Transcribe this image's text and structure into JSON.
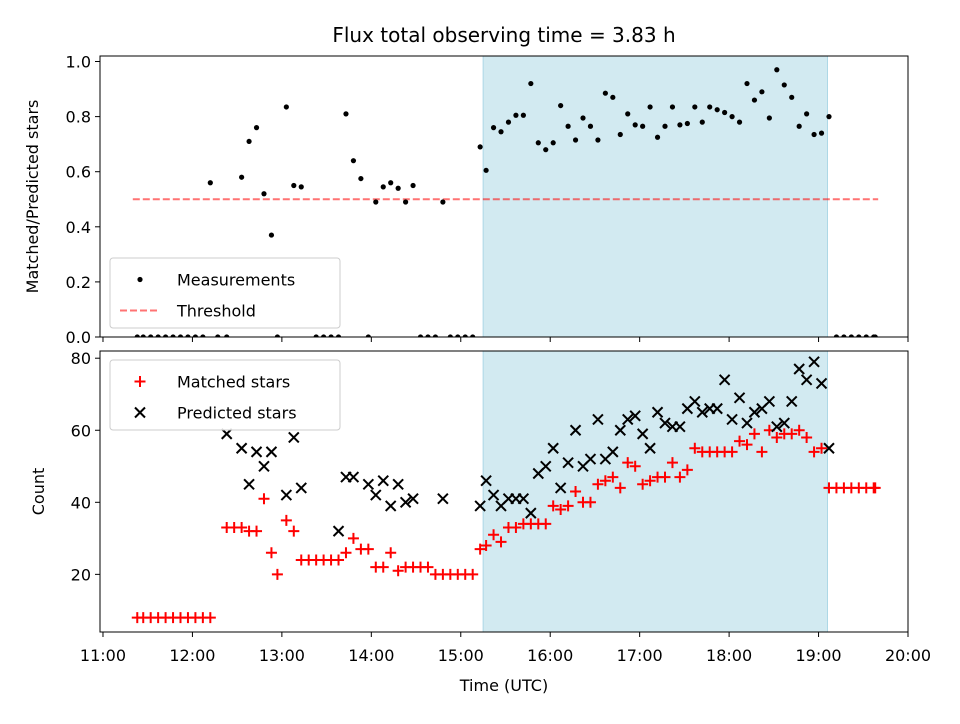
{
  "chart_data": {
    "title": "Flux total observing time = 3.83 h",
    "xlabel": "Time (UTC)",
    "x_ticks": [
      "11:00",
      "12:00",
      "13:00",
      "14:00",
      "15:00",
      "16:00",
      "17:00",
      "18:00",
      "19:00",
      "20:00"
    ],
    "xlim": [
      "10:58",
      "20:00"
    ],
    "shaded_interval": {
      "start": "15:15",
      "end": "19:06",
      "color": "#add8e6"
    },
    "panels": [
      {
        "type": "scatter",
        "ylabel": "Matched/Predicted stars",
        "ylim": [
          0,
          1.02
        ],
        "y_ticks": [
          "0.0",
          "0.2",
          "0.4",
          "0.6",
          "0.8",
          "1.0"
        ],
        "legend_position": "lower-left",
        "threshold": {
          "name": "Threshold",
          "value": 0.5,
          "x_start": "11:20",
          "x_end": "19:40",
          "color": "#ff0000",
          "style": "dashed"
        },
        "series": [
          {
            "name": "Measurements",
            "marker": "dot",
            "color": "#000000",
            "x": [
              "11:23",
              "11:27",
              "11:32",
              "11:37",
              "11:42",
              "11:47",
              "11:52",
              "11:57",
              "12:02",
              "12:07",
              "12:12",
              "12:17",
              "12:23",
              "12:33",
              "12:38",
              "12:43",
              "12:48",
              "12:53",
              "12:57",
              "13:03",
              "13:08",
              "13:13",
              "13:23",
              "13:28",
              "13:33",
              "13:38",
              "13:43",
              "13:48",
              "13:53",
              "13:58",
              "14:03",
              "14:08",
              "14:13",
              "14:18",
              "14:23",
              "14:28",
              "14:33",
              "14:38",
              "14:43",
              "14:48",
              "14:53",
              "14:58",
              "15:03",
              "15:08",
              "15:13",
              "15:17",
              "15:22",
              "15:27",
              "15:32",
              "15:37",
              "15:42",
              "15:47",
              "15:52",
              "15:57",
              "16:02",
              "16:07",
              "16:12",
              "16:17",
              "16:22",
              "16:27",
              "16:32",
              "16:37",
              "16:42",
              "16:47",
              "16:52",
              "16:57",
              "17:02",
              "17:07",
              "17:12",
              "17:17",
              "17:22",
              "17:27",
              "17:32",
              "17:37",
              "17:42",
              "17:47",
              "17:52",
              "17:57",
              "18:02",
              "18:07",
              "18:12",
              "18:17",
              "18:22",
              "18:27",
              "18:32",
              "18:37",
              "18:42",
              "18:47",
              "18:52",
              "18:57",
              "19:02",
              "19:07",
              "19:12",
              "19:17",
              "19:22",
              "19:27",
              "19:32",
              "19:37",
              "19:38"
            ],
            "y": [
              0,
              0,
              0,
              0,
              0,
              0,
              0,
              0,
              0,
              0,
              0.56,
              0,
              0,
              0.58,
              0.71,
              0.76,
              0.52,
              0.37,
              0,
              0.835,
              0.55,
              0.545,
              0,
              0,
              0,
              0,
              0.81,
              0.64,
              0.575,
              0,
              0.49,
              0.545,
              0.56,
              0.54,
              0.49,
              0.55,
              0,
              0,
              0,
              0.49,
              0,
              0,
              0,
              0,
              0.69,
              0.605,
              0.76,
              0.745,
              0.78,
              0.805,
              0.805,
              0.92,
              0.705,
              0.68,
              0.705,
              0.84,
              0.765,
              0.715,
              0.795,
              0.765,
              0.715,
              0.885,
              0.87,
              0.735,
              0.81,
              0.77,
              0.765,
              0.835,
              0.725,
              0.765,
              0.835,
              0.77,
              0.775,
              0.835,
              0.78,
              0.835,
              0.825,
              0.815,
              0.8,
              0.78,
              0.92,
              0.86,
              0.89,
              0.795,
              0.97,
              0.915,
              0.87,
              0.765,
              0.81,
              0.735,
              0.74,
              0.8,
              0,
              0,
              0,
              0,
              0,
              0,
              0
            ]
          }
        ]
      },
      {
        "type": "scatter",
        "ylabel": "Count",
        "ylim": [
          4,
          82
        ],
        "y_ticks": [
          "20",
          "40",
          "60",
          "80"
        ],
        "legend_position": "upper-left",
        "series": [
          {
            "name": "Matched stars",
            "marker": "plus",
            "color": "#ff0000",
            "x": [
              "11:23",
              "11:27",
              "11:32",
              "11:37",
              "11:42",
              "11:47",
              "11:52",
              "11:57",
              "12:02",
              "12:07",
              "12:12",
              "12:23",
              "12:28",
              "12:33",
              "12:38",
              "12:43",
              "12:48",
              "12:53",
              "12:57",
              "13:03",
              "13:08",
              "13:13",
              "13:18",
              "13:23",
              "13:28",
              "13:33",
              "13:38",
              "13:43",
              "13:48",
              "13:53",
              "13:58",
              "14:03",
              "14:08",
              "14:13",
              "14:18",
              "14:23",
              "14:28",
              "14:33",
              "14:38",
              "14:43",
              "14:48",
              "14:53",
              "14:58",
              "15:03",
              "15:08",
              "15:13",
              "15:17",
              "15:22",
              "15:27",
              "15:32",
              "15:37",
              "15:42",
              "15:47",
              "15:52",
              "15:57",
              "16:02",
              "16:07",
              "16:12",
              "16:17",
              "16:22",
              "16:27",
              "16:32",
              "16:37",
              "16:42",
              "16:47",
              "16:52",
              "16:57",
              "17:02",
              "17:07",
              "17:12",
              "17:17",
              "17:22",
              "17:27",
              "17:32",
              "17:37",
              "17:42",
              "17:47",
              "17:52",
              "17:57",
              "18:02",
              "18:07",
              "18:12",
              "18:17",
              "18:22",
              "18:27",
              "18:32",
              "18:37",
              "18:42",
              "18:47",
              "18:52",
              "18:57",
              "19:02",
              "19:07",
              "19:12",
              "19:17",
              "19:22",
              "19:27",
              "19:32",
              "19:37",
              "19:38"
            ],
            "y": [
              8,
              8,
              8,
              8,
              8,
              8,
              8,
              8,
              8,
              8,
              8,
              33,
              33,
              33,
              32,
              32,
              41,
              26,
              20,
              35,
              32,
              24,
              24,
              24,
              24,
              24,
              24,
              26,
              30,
              27,
              27,
              22,
              22,
              26,
              21,
              22,
              22,
              22,
              22,
              20,
              20,
              20,
              20,
              20,
              20,
              27,
              28,
              31,
              29,
              33,
              33,
              34,
              34,
              34,
              34,
              39,
              38,
              39,
              43,
              40,
              40,
              45,
              46,
              47,
              44,
              51,
              50,
              45,
              46,
              47,
              47,
              51,
              47,
              49,
              55,
              54,
              54,
              54,
              54,
              54,
              57,
              56,
              59,
              54,
              60,
              58,
              59,
              59,
              60,
              58,
              54,
              55,
              44,
              44,
              44,
              44,
              44,
              44,
              44,
              44
            ]
          },
          {
            "name": "Predicted stars",
            "marker": "x",
            "color": "#000000",
            "x": [
              "12:23",
              "12:33",
              "12:38",
              "12:43",
              "12:48",
              "12:53",
              "13:03",
              "13:08",
              "13:13",
              "13:38",
              "13:43",
              "13:48",
              "13:58",
              "14:03",
              "14:08",
              "14:13",
              "14:18",
              "14:23",
              "14:28",
              "14:48",
              "15:13",
              "15:17",
              "15:22",
              "15:27",
              "15:32",
              "15:37",
              "15:42",
              "15:47",
              "15:52",
              "15:57",
              "16:02",
              "16:07",
              "16:12",
              "16:17",
              "16:22",
              "16:27",
              "16:32",
              "16:37",
              "16:42",
              "16:47",
              "16:52",
              "16:57",
              "17:02",
              "17:07",
              "17:12",
              "17:17",
              "17:22",
              "17:27",
              "17:32",
              "17:37",
              "17:42",
              "17:47",
              "17:52",
              "17:57",
              "18:02",
              "18:07",
              "18:12",
              "18:17",
              "18:22",
              "18:27",
              "18:32",
              "18:37",
              "18:42",
              "18:47",
              "18:52",
              "18:57",
              "19:02",
              "19:07"
            ],
            "y": [
              59,
              55,
              45,
              54,
              50,
              54,
              42,
              58,
              44,
              32,
              47,
              47,
              45,
              42,
              46,
              39,
              45,
              40,
              41,
              41,
              39,
              46,
              42,
              39,
              41,
              41,
              41,
              37,
              48,
              50,
              55,
              44,
              51,
              60,
              50,
              52,
              63,
              52,
              54,
              60,
              63,
              64,
              59,
              55,
              65,
              62,
              61,
              61,
              66,
              68,
              65,
              66,
              66,
              74,
              63,
              69,
              62,
              65,
              66,
              68,
              61,
              62,
              68,
              77,
              74,
              79,
              73,
              55
            ]
          }
        ]
      }
    ]
  }
}
